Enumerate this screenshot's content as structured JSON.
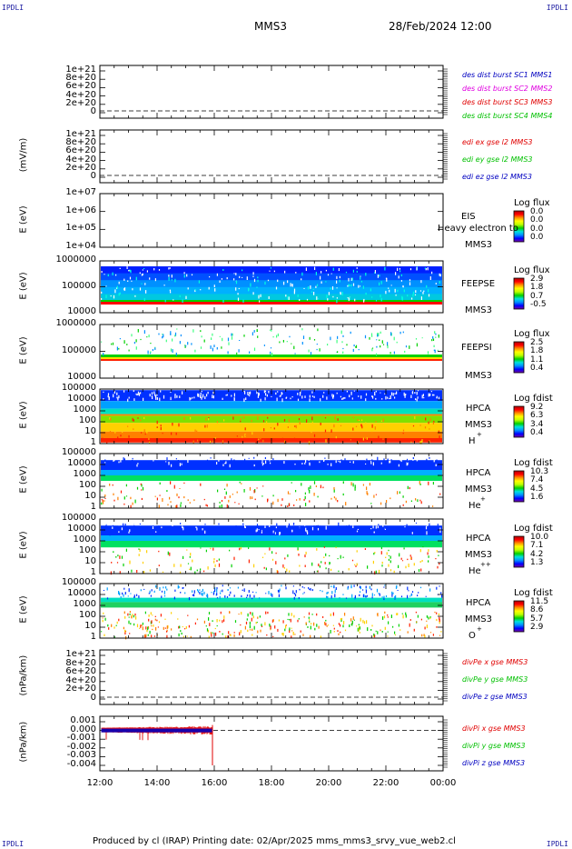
{
  "corners": {
    "tl": "IPDLI",
    "tr": "IPDLI",
    "bl": "IPDLI",
    "br": "IPDLI"
  },
  "header": {
    "title": "MMS3",
    "datetime": "28/Feb/2024 12:00"
  },
  "footer": {
    "text": "Produced by cl (IRAP)   Printing date: 02/Apr/2025   mms_mms3_srvy_vue_web2.cl"
  },
  "colors": {
    "rainbow": [
      "#7a00a0",
      "#0000ff",
      "#0090ff",
      "#00e0e0",
      "#00d000",
      "#c0ff00",
      "#ffff00",
      "#ff9000",
      "#ff0000",
      "#b00000"
    ]
  },
  "chart_data": {
    "type": "spectrogram-stack",
    "x_ticks": [
      "12:00",
      "14:00",
      "16:00",
      "18:00",
      "20:00",
      "22:00",
      "00:00"
    ],
    "panels": [
      {
        "ylabel": "",
        "yticks": [
          "1e+21",
          "8e+20",
          "6e+20",
          "4e+20",
          "2e+20",
          "0"
        ],
        "legend": [
          {
            "text": "des dist burst SC1 MMS1",
            "color": "#0000c0"
          },
          {
            "text": "des dist burst SC2 MMS2",
            "color": "#e000e0"
          },
          {
            "text": "des dist burst SC3 MMS3",
            "color": "#e00000"
          },
          {
            "text": "des dist burst SC4 MMS4",
            "color": "#00c000"
          }
        ]
      },
      {
        "ylabel": "(mV/m)",
        "yticks": [
          "1e+21",
          "8e+20",
          "6e+20",
          "4e+20",
          "2e+20",
          "0"
        ],
        "legend": [
          {
            "text": "edi ex gse l2 MMS3",
            "color": "#e00000"
          },
          {
            "text": "edi ey gse l2 MMS3",
            "color": "#00c000"
          },
          {
            "text": "edi ez gse l2 MMS3",
            "color": "#0000c0"
          }
        ]
      },
      {
        "ylabel": "E (eV)",
        "yticks": [
          "1e+07",
          "1e+06",
          "1e+05",
          "1e+04"
        ],
        "inst": [
          "EIS",
          "MMS3"
        ],
        "overlay": "Heavy electron to",
        "cb_title": "Log flux",
        "cb_vals": [
          "0.0",
          "0.0",
          "0.0",
          "0.0"
        ]
      },
      {
        "ylabel": "E (eV)",
        "yticks": [
          "1000000",
          "100000",
          "10000"
        ],
        "inst": [
          "FEEPSE",
          "MMS3"
        ],
        "cb_title": "Log flux",
        "cb_vals": [
          "2.9",
          "1.8",
          "0.7",
          "-0.5"
        ]
      },
      {
        "ylabel": "E (eV)",
        "yticks": [
          "1000000",
          "100000",
          "10000"
        ],
        "inst": [
          "FEEPSI",
          "MMS3"
        ],
        "cb_title": "Log flux",
        "cb_vals": [
          "2.5",
          "1.8",
          "1.1",
          "0.4"
        ]
      },
      {
        "ylabel": "E (eV)",
        "yticks": [
          "100000",
          "10000",
          "1000",
          "100",
          "10",
          "1"
        ],
        "inst": [
          "HPCA",
          "MMS3",
          "H",
          "+"
        ],
        "cb_title": "Log fdist",
        "cb_vals": [
          "9.2",
          "6.3",
          "3.4",
          "0.4"
        ]
      },
      {
        "ylabel": "E (eV)",
        "yticks": [
          "100000",
          "10000",
          "1000",
          "100",
          "10",
          "1"
        ],
        "inst": [
          "HPCA",
          "MMS3",
          "He",
          "+"
        ],
        "cb_title": "Log fdist",
        "cb_vals": [
          "10.3",
          "7.4",
          "4.5",
          "1.6"
        ]
      },
      {
        "ylabel": "E (eV)",
        "yticks": [
          "100000",
          "10000",
          "1000",
          "100",
          "10",
          "1"
        ],
        "inst": [
          "HPCA",
          "MMS3",
          "He",
          "++"
        ],
        "cb_title": "Log fdist",
        "cb_vals": [
          "10.0",
          "7.1",
          "4.2",
          "1.3"
        ]
      },
      {
        "ylabel": "E (eV)",
        "yticks": [
          "100000",
          "10000",
          "1000",
          "100",
          "10",
          "1"
        ],
        "inst": [
          "HPCA",
          "MMS3",
          "O",
          "+"
        ],
        "cb_title": "Log fdist",
        "cb_vals": [
          "11.5",
          "8.6",
          "5.7",
          "2.9"
        ]
      },
      {
        "ylabel": "(nPa/km)",
        "yticks": [
          "1e+21",
          "8e+20",
          "6e+20",
          "4e+20",
          "2e+20",
          "0"
        ],
        "legend": [
          {
            "text": "divPe x gse MMS3",
            "color": "#e00000"
          },
          {
            "text": "divPe y gse MMS3",
            "color": "#00c000"
          },
          {
            "text": "divPe z gse MMS3",
            "color": "#0000c0"
          }
        ]
      },
      {
        "ylabel": "(nPa/km)",
        "yticks": [
          "0.001",
          "0.000",
          "-0.001",
          "-0.002",
          "-0.003",
          "-0.004"
        ],
        "legend": [
          {
            "text": "divPi x gse MMS3",
            "color": "#e00000"
          },
          {
            "text": "divPi y gse MMS3",
            "color": "#00c000"
          },
          {
            "text": "divPi z gse MMS3",
            "color": "#0000c0"
          }
        ]
      }
    ]
  }
}
